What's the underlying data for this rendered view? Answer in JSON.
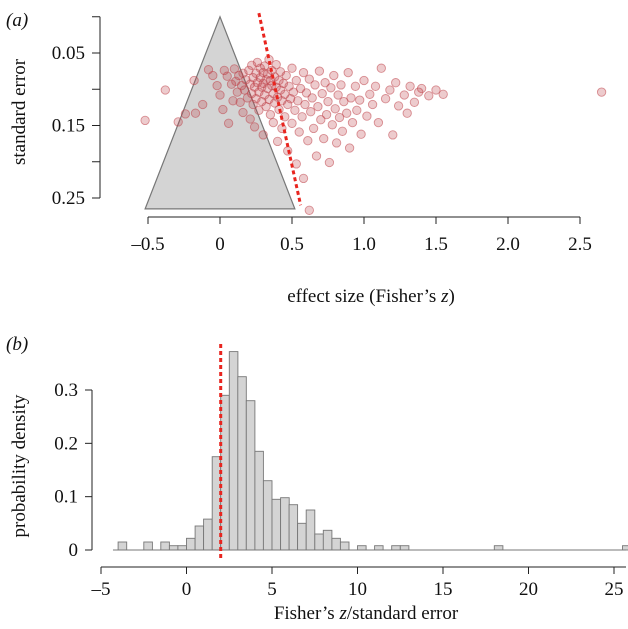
{
  "chart_data": [
    {
      "panel_label": "(a)",
      "type": "scatter",
      "title": "",
      "xlabel": "effect size (Fisher's z)",
      "xlabel_main": "effect size (Fisher’s ",
      "xlabel_var": "z",
      "xlabel_close": ")",
      "ylabel": "standard error",
      "xlim": [
        -0.6,
        2.75
      ],
      "ylim": [
        0.27,
        0.0
      ],
      "y_reversed": true,
      "xticks": [
        -0.5,
        0,
        0.5,
        1.0,
        1.5,
        2.0,
        2.5
      ],
      "xtick_labels": [
        "–0.5",
        "0",
        "0.5",
        "1.0",
        "1.5",
        "2.0",
        "2.5"
      ],
      "yticks": [
        0.05,
        0.15,
        0.25
      ],
      "ytick_labels": [
        "0.05",
        "0.15",
        "0.25"
      ],
      "yticks_minor": [
        0.0,
        0.1,
        0.2
      ],
      "funnel": {
        "apex": [
          0,
          0
        ],
        "base_left": [
          -0.52,
          0.265
        ],
        "base_right": [
          0.52,
          0.265
        ],
        "fill": "#d4d4d4",
        "stroke": "#777777"
      },
      "egger_line": {
        "points": [
          [
            0.27,
            -0.005
          ],
          [
            0.56,
            0.26
          ]
        ],
        "color": "#e8251f",
        "style": "dotted"
      },
      "point_color": "#c0444a",
      "points": [
        [
          -0.52,
          0.143
        ],
        [
          -0.38,
          0.101
        ],
        [
          -0.29,
          0.145
        ],
        [
          -0.24,
          0.134
        ],
        [
          -0.18,
          0.088
        ],
        [
          -0.17,
          0.133
        ],
        [
          -0.12,
          0.121
        ],
        [
          -0.08,
          0.073
        ],
        [
          -0.05,
          0.081
        ],
        [
          -0.02,
          0.095
        ],
        [
          0.0,
          0.108
        ],
        [
          0.02,
          0.128
        ],
        [
          0.03,
          0.074
        ],
        [
          0.05,
          0.082
        ],
        [
          0.06,
          0.147
        ],
        [
          0.08,
          0.093
        ],
        [
          0.09,
          0.116
        ],
        [
          0.1,
          0.072
        ],
        [
          0.11,
          0.089
        ],
        [
          0.12,
          0.104
        ],
        [
          0.13,
          0.081
        ],
        [
          0.14,
          0.118
        ],
        [
          0.15,
          0.095
        ],
        [
          0.16,
          0.078
        ],
        [
          0.16,
          0.132
        ],
        [
          0.17,
          0.101
        ],
        [
          0.18,
          0.087
        ],
        [
          0.19,
          0.112
        ],
        [
          0.2,
          0.074
        ],
        [
          0.21,
          0.093
        ],
        [
          0.21,
          0.141
        ],
        [
          0.22,
          0.067
        ],
        [
          0.22,
          0.106
        ],
        [
          0.23,
          0.084
        ],
        [
          0.23,
          0.121
        ],
        [
          0.24,
          0.097
        ],
        [
          0.24,
          0.152
        ],
        [
          0.25,
          0.078
        ],
        [
          0.25,
          0.113
        ],
        [
          0.26,
          0.091
        ],
        [
          0.26,
          0.063
        ],
        [
          0.27,
          0.104
        ],
        [
          0.27,
          0.129
        ],
        [
          0.28,
          0.084
        ],
        [
          0.28,
          0.071
        ],
        [
          0.29,
          0.097
        ],
        [
          0.29,
          0.117
        ],
        [
          0.3,
          0.077
        ],
        [
          0.3,
          0.092
        ],
        [
          0.3,
          0.163
        ],
        [
          0.31,
          0.108
        ],
        [
          0.31,
          0.068
        ],
        [
          0.32,
          0.087
        ],
        [
          0.32,
          0.124
        ],
        [
          0.33,
          0.079
        ],
        [
          0.33,
          0.099
        ],
        [
          0.34,
          0.114
        ],
        [
          0.34,
          0.059
        ],
        [
          0.35,
          0.088
        ],
        [
          0.35,
          0.135
        ],
        [
          0.36,
          0.095
        ],
        [
          0.36,
          0.074
        ],
        [
          0.37,
          0.106
        ],
        [
          0.37,
          0.146
        ],
        [
          0.38,
          0.083
        ],
        [
          0.38,
          0.119
        ],
        [
          0.39,
          0.097
        ],
        [
          0.39,
          0.066
        ],
        [
          0.4,
          0.111
        ],
        [
          0.4,
          0.172
        ],
        [
          0.41,
          0.088
        ],
        [
          0.41,
          0.128
        ],
        [
          0.42,
          0.101
        ],
        [
          0.42,
          0.076
        ],
        [
          0.43,
          0.116
        ],
        [
          0.43,
          0.154
        ],
        [
          0.44,
          0.092
        ],
        [
          0.45,
          0.107
        ],
        [
          0.45,
          0.138
        ],
        [
          0.46,
          0.081
        ],
        [
          0.47,
          0.121
        ],
        [
          0.47,
          0.185
        ],
        [
          0.48,
          0.096
        ],
        [
          0.49,
          0.113
        ],
        [
          0.5,
          0.071
        ],
        [
          0.5,
          0.147
        ],
        [
          0.51,
          0.104
        ],
        [
          0.52,
          0.129
        ],
        [
          0.53,
          0.088
        ],
        [
          0.53,
          0.203
        ],
        [
          0.54,
          0.116
        ],
        [
          0.55,
          0.159
        ],
        [
          0.56,
          0.099
        ],
        [
          0.57,
          0.138
        ],
        [
          0.58,
          0.077
        ],
        [
          0.58,
          0.223
        ],
        [
          0.59,
          0.121
        ],
        [
          0.6,
          0.105
        ],
        [
          0.61,
          0.171
        ],
        [
          0.62,
          0.086
        ],
        [
          0.62,
          0.267
        ],
        [
          0.63,
          0.131
        ],
        [
          0.64,
          0.112
        ],
        [
          0.65,
          0.154
        ],
        [
          0.66,
          0.094
        ],
        [
          0.67,
          0.192
        ],
        [
          0.68,
          0.124
        ],
        [
          0.69,
          0.075
        ],
        [
          0.7,
          0.142
        ],
        [
          0.71,
          0.106
        ],
        [
          0.72,
          0.168
        ],
        [
          0.73,
          0.091
        ],
        [
          0.74,
          0.135
        ],
        [
          0.75,
          0.117
        ],
        [
          0.76,
          0.201
        ],
        [
          0.77,
          0.098
        ],
        [
          0.78,
          0.149
        ],
        [
          0.79,
          0.081
        ],
        [
          0.8,
          0.127
        ],
        [
          0.81,
          0.174
        ],
        [
          0.82,
          0.108
        ],
        [
          0.83,
          0.139
        ],
        [
          0.84,
          0.094
        ],
        [
          0.85,
          0.158
        ],
        [
          0.86,
          0.117
        ],
        [
          0.88,
          0.133
        ],
        [
          0.89,
          0.077
        ],
        [
          0.9,
          0.181
        ],
        [
          0.91,
          0.112
        ],
        [
          0.92,
          0.146
        ],
        [
          0.94,
          0.096
        ],
        [
          0.95,
          0.129
        ],
        [
          0.97,
          0.115
        ],
        [
          0.98,
          0.162
        ],
        [
          1.0,
          0.088
        ],
        [
          1.02,
          0.137
        ],
        [
          1.04,
          0.107
        ],
        [
          1.06,
          0.121
        ],
        [
          1.08,
          0.096
        ],
        [
          1.1,
          0.146
        ],
        [
          1.12,
          0.071
        ],
        [
          1.15,
          0.113
        ],
        [
          1.18,
          0.101
        ],
        [
          1.2,
          0.163
        ],
        [
          1.22,
          0.091
        ],
        [
          1.24,
          0.123
        ],
        [
          1.28,
          0.108
        ],
        [
          1.3,
          0.133
        ],
        [
          1.32,
          0.096
        ],
        [
          1.35,
          0.118
        ],
        [
          1.38,
          0.104
        ],
        [
          1.4,
          0.099
        ],
        [
          1.45,
          0.109
        ],
        [
          1.5,
          0.101
        ],
        [
          1.55,
          0.107
        ],
        [
          2.65,
          0.104
        ]
      ]
    },
    {
      "panel_label": "(b)",
      "type": "histogram",
      "title": "",
      "xlabel": "Fisher's z/standard error",
      "xlabel_var": "z",
      "xlabel_rest": "/standard error",
      "xlabel_prefix": "Fisher’s ",
      "ylabel": "probability density",
      "xlim": [
        -5,
        26
      ],
      "ylim": [
        0,
        0.38
      ],
      "xticks": [
        -5,
        0,
        5,
        10,
        15,
        20,
        25
      ],
      "xtick_labels": [
        "–5",
        "0",
        "5",
        "10",
        "15",
        "20",
        "25"
      ],
      "yticks": [
        0,
        0.1,
        0.2,
        0.3
      ],
      "ytick_labels": [
        "0",
        "0.1",
        "0.2",
        "0.3"
      ],
      "bin_width": 0.5,
      "bar_fill": "#d4d4d4",
      "bar_stroke": "#777777",
      "vline": {
        "x": 2.0,
        "color": "#e8251f",
        "style": "dotted"
      },
      "bins": [
        [
          -4.0,
          0.015
        ],
        [
          -2.5,
          0.015
        ],
        [
          -1.5,
          0.015
        ],
        [
          -1.0,
          0.008
        ],
        [
          -0.5,
          0.008
        ],
        [
          0.0,
          0.022
        ],
        [
          0.5,
          0.045
        ],
        [
          1.0,
          0.058
        ],
        [
          1.5,
          0.175
        ],
        [
          2.0,
          0.29
        ],
        [
          2.5,
          0.372
        ],
        [
          3.0,
          0.325
        ],
        [
          3.5,
          0.28
        ],
        [
          4.0,
          0.185
        ],
        [
          4.5,
          0.13
        ],
        [
          5.0,
          0.095
        ],
        [
          5.5,
          0.098
        ],
        [
          6.0,
          0.085
        ],
        [
          6.5,
          0.05
        ],
        [
          7.0,
          0.075
        ],
        [
          7.5,
          0.03
        ],
        [
          8.0,
          0.037
        ],
        [
          8.5,
          0.022
        ],
        [
          9.0,
          0.015
        ],
        [
          10.0,
          0.008
        ],
        [
          11.0,
          0.008
        ],
        [
          12.0,
          0.008
        ],
        [
          12.5,
          0.008
        ],
        [
          18.0,
          0.008
        ],
        [
          25.5,
          0.008
        ]
      ]
    }
  ]
}
